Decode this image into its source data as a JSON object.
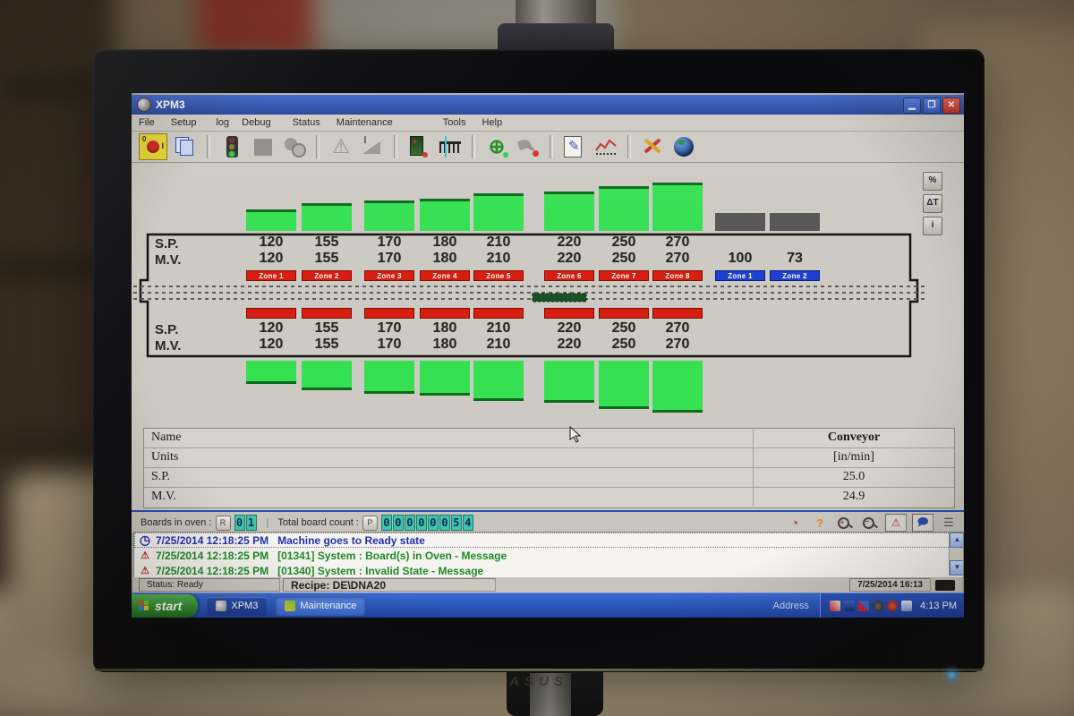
{
  "monitor": {
    "brand": "ASUS"
  },
  "window": {
    "title": "XPM3",
    "menus": [
      {
        "label": "File"
      },
      {
        "label": "Setup"
      },
      {
        "label": "log"
      },
      {
        "label": "Debug"
      },
      {
        "label": "Status"
      },
      {
        "label": "Maintenance"
      },
      {
        "label": "Tools"
      },
      {
        "label": "Help"
      }
    ]
  },
  "side_buttons": [
    {
      "label": "%"
    },
    {
      "label": "ΔT"
    },
    {
      "label": "i"
    }
  ],
  "oven": {
    "sp_label": "S.P.",
    "mv_label": "M.V.",
    "heat_zones": [
      {
        "name": "Zone 1",
        "sp": 120,
        "mv": 120
      },
      {
        "name": "Zone 2",
        "sp": 155,
        "mv": 155
      },
      {
        "name": "Zone 3",
        "sp": 170,
        "mv": 170
      },
      {
        "name": "Zone 4",
        "sp": 180,
        "mv": 180
      },
      {
        "name": "Zone 5",
        "sp": 210,
        "mv": 210
      },
      {
        "name": "Zone 6",
        "sp": 220,
        "mv": 220
      },
      {
        "name": "Zone 7",
        "sp": 250,
        "mv": 250
      },
      {
        "name": "Zone 8",
        "sp": 270,
        "mv": 270
      }
    ],
    "cool_zones": [
      {
        "name": "Zone 1",
        "mv": 100
      },
      {
        "name": "Zone 2",
        "mv": 73
      }
    ]
  },
  "table": {
    "rows": [
      {
        "label": "Name",
        "value": "Conveyor"
      },
      {
        "label": "Units",
        "value": "[in/min]"
      },
      {
        "label": "S.P.",
        "value": "25.0"
      },
      {
        "label": "M.V.",
        "value": "24.9"
      }
    ]
  },
  "counters": {
    "boards_label": "Boards in oven :",
    "boards_button": "R",
    "boards_digits": "01",
    "total_label": "Total board count :",
    "total_button": "P",
    "total_digits": "00000054"
  },
  "log_entries": [
    {
      "icon": "clock",
      "color": "#2430b8",
      "time": "7/25/2014 12:18:25 PM",
      "text": "Machine goes to Ready state",
      "selected": true
    },
    {
      "icon": "warning",
      "color": "#1f8a28",
      "time": "7/25/2014 12:18:25 PM",
      "text": "[01341]  System : Board(s) in Oven - Message",
      "selected": false
    },
    {
      "icon": "warning",
      "color": "#1f8a28",
      "time": "7/25/2014 12:18:25 PM",
      "text": "[01340]  System : Invalid State - Message",
      "selected": false
    }
  ],
  "app_statusbar": {
    "status": "Status: Ready",
    "recipe": "Recipe: DE\\DNA20",
    "datetime": "7/25/2014 16:13"
  },
  "taskbar": {
    "start_label": "start",
    "tasks": [
      {
        "label": "XPM3",
        "active": false
      },
      {
        "label": "Maintenance",
        "active": true
      }
    ],
    "address_label": "Address",
    "clock": "4:13 PM"
  },
  "colors": {
    "bar_green": "#35e052",
    "bar_cap_green": "#0c6b1c",
    "cool_bar_gray": "#565656",
    "zone_red": "#d81e10",
    "zone_blue": "#1e3fd0",
    "digit_teal": "#3fc4ae",
    "xp_blue": "#2a55b8"
  }
}
